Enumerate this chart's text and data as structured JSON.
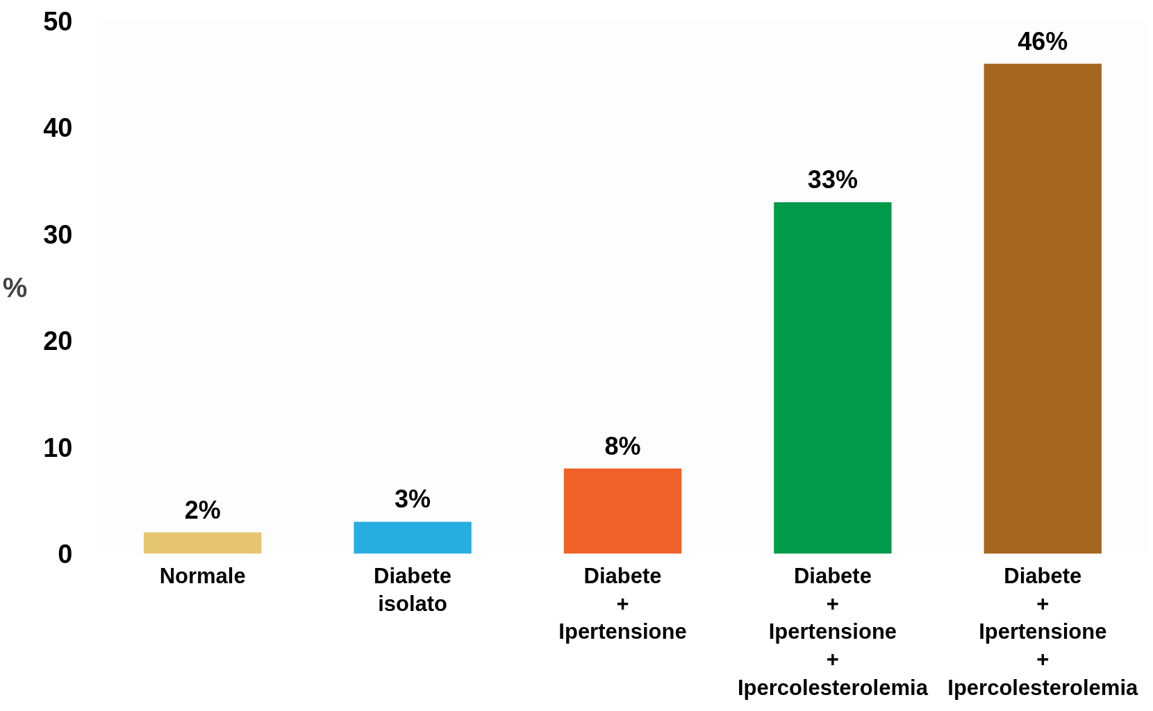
{
  "chart_data": {
    "type": "bar",
    "ylabel": "%",
    "categories": [
      "Normale",
      "Diabete\nisolato",
      "Diabete\n+\nIpertensione",
      "Diabete\n+\nIpertensione\n+\nIpercolesterolemia",
      "Diabete\n+\nIpertensione\n+\nIpercolesterolemia"
    ],
    "values": [
      2,
      3,
      8,
      33,
      46
    ],
    "value_labels": [
      "2%",
      "3%",
      "8%",
      "33%",
      "46%"
    ],
    "colors": [
      "#e6c670",
      "#27aee0",
      "#f1612a",
      "#009a4a",
      "#a5671f"
    ],
    "ylim": [
      0,
      50
    ],
    "yticks": [
      0,
      10,
      20,
      30,
      40,
      50
    ],
    "grid": false
  }
}
